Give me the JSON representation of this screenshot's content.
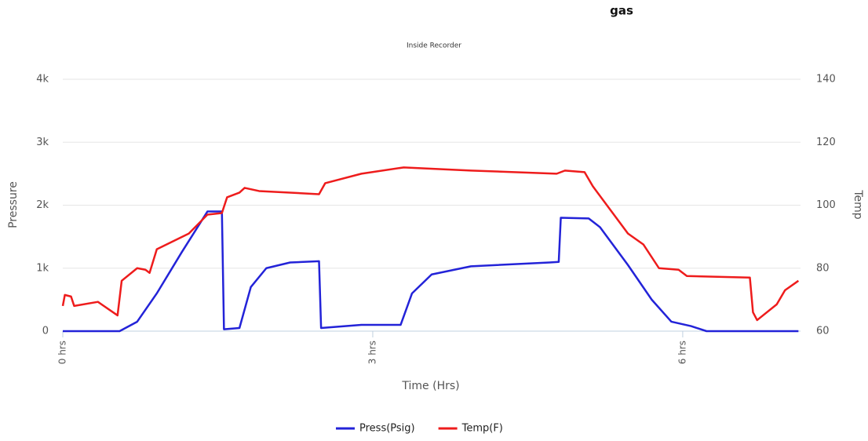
{
  "chart_data": {
    "type": "line",
    "title": "gas",
    "subtitle": "Inside Recorder",
    "x_label": "Time (Hrs)",
    "y_label": "Pressure",
    "y2_label": "Temp",
    "xlim": [
      0,
      7.14
    ],
    "xticks": [
      {
        "value": 0,
        "label": "0 hrs"
      },
      {
        "value": 3,
        "label": "3 hrs"
      },
      {
        "value": 6,
        "label": "6 hrs"
      }
    ],
    "ylim": [
      0,
      4000
    ],
    "yticks": [
      0,
      {
        "value": 1000,
        "label": "1k"
      },
      {
        "value": 2000,
        "label": "2k"
      },
      {
        "value": 3000,
        "label": "3k"
      },
      {
        "value": 4000,
        "label": "4k"
      }
    ],
    "y2lim": [
      60,
      140
    ],
    "y2ticks": [
      60,
      80,
      100,
      120,
      140
    ],
    "grid": true,
    "legend": "bottom",
    "series": [
      {
        "name": "Press(Psig)",
        "color": "#2323d8",
        "x": [
          0,
          0.55,
          0.72,
          0.91,
          1.15,
          1.4,
          1.54,
          1.56,
          1.71,
          1.82,
          1.97,
          2.2,
          2.48,
          2.5,
          2.89,
          3.27,
          3.38,
          3.57,
          3.95,
          4.71,
          4.8,
          4.82,
          5.09,
          5.2,
          5.47,
          5.7,
          5.89,
          6.08,
          6.23,
          7.12
        ],
        "values": [
          0,
          0,
          150,
          600,
          1250,
          1900,
          1900,
          30,
          50,
          700,
          1000,
          1090,
          1110,
          50,
          100,
          100,
          600,
          900,
          1030,
          1090,
          1100,
          1800,
          1790,
          1650,
          1050,
          500,
          150,
          80,
          0,
          0
        ]
      },
      {
        "name": "Temp(F)",
        "color": "#ee1c1c",
        "axis": "y2",
        "x": [
          0,
          0.02,
          0.08,
          0.11,
          0.34,
          0.53,
          0.57,
          0.72,
          0.8,
          0.84,
          0.91,
          1.22,
          1.4,
          1.54,
          1.59,
          1.71,
          1.76,
          1.9,
          2.48,
          2.54,
          2.89,
          3.3,
          3.95,
          4.78,
          4.86,
          5.05,
          5.13,
          5.47,
          5.62,
          5.77,
          5.96,
          6.04,
          6.65,
          6.68,
          6.72,
          6.91,
          6.99,
          7.12
        ],
        "values": [
          68,
          71.5,
          71,
          68,
          69.3,
          65,
          76,
          80,
          79.5,
          78.5,
          86,
          91,
          97,
          97.5,
          102.5,
          104,
          105.5,
          104.5,
          103.5,
          107,
          110,
          112,
          111,
          110,
          111,
          110.5,
          106,
          91,
          87.5,
          80,
          79.5,
          77.5,
          77,
          66,
          63.5,
          68.5,
          73,
          76
        ]
      }
    ]
  }
}
